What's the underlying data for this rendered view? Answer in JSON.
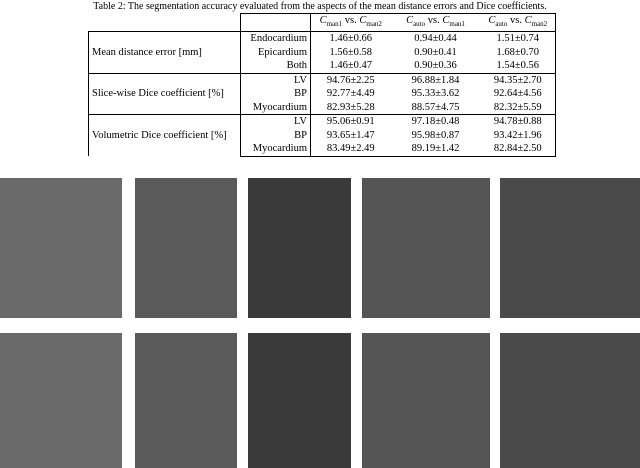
{
  "caption": "Table 2: The segmentation accuracy evaluated from the aspects of the mean distance errors and Dice coefficients.",
  "table": {
    "headers": [
      {
        "left": "C",
        "left_sub": "man1",
        "vs": "vs.",
        "right": "C",
        "right_sub": "man2"
      },
      {
        "left": "C",
        "left_sub": "auto",
        "vs": "vs.",
        "right": "C",
        "right_sub": "man1"
      },
      {
        "left": "C",
        "left_sub": "auto",
        "vs": "vs.",
        "right": "C",
        "right_sub": "man2"
      }
    ],
    "groups": [
      {
        "label": "Mean distance error [mm]",
        "rows": [
          {
            "name": "Endocardium",
            "values": [
              "1.46±0.66",
              "0.94±0.44",
              "1.51±0.74"
            ]
          },
          {
            "name": "Epicardium",
            "values": [
              "1.56±0.58",
              "0.90±0.41",
              "1.68±0.70"
            ]
          },
          {
            "name": "Both",
            "values": [
              "1.46±0.47",
              "0.90±0.36",
              "1.54±0.56"
            ]
          }
        ]
      },
      {
        "label": "Slice-wise Dice coefficient [%]",
        "rows": [
          {
            "name": "LV",
            "values": [
              "94.76±2.25",
              "96.88±1.84",
              "94.35±2.70"
            ]
          },
          {
            "name": "BP",
            "values": [
              "92.77±4.49",
              "95.33±3.62",
              "92.64±4.56"
            ]
          },
          {
            "name": "Myocardium",
            "values": [
              "82.93±5.28",
              "88.57±4.75",
              "82.32±5.59"
            ]
          }
        ]
      },
      {
        "label": "Volumetric Dice coefficient [%]",
        "rows": [
          {
            "name": "LV",
            "values": [
              "95.06±0.91",
              "97.18±0.48",
              "94.78±0.88"
            ]
          },
          {
            "name": "BP",
            "values": [
              "93.65±1.47",
              "95.98±0.87",
              "93.42±1.96"
            ]
          },
          {
            "name": "Myocardium",
            "values": [
              "83.49±2.49",
              "89.19±1.42",
              "82.84±2.50"
            ]
          }
        ]
      }
    ]
  }
}
